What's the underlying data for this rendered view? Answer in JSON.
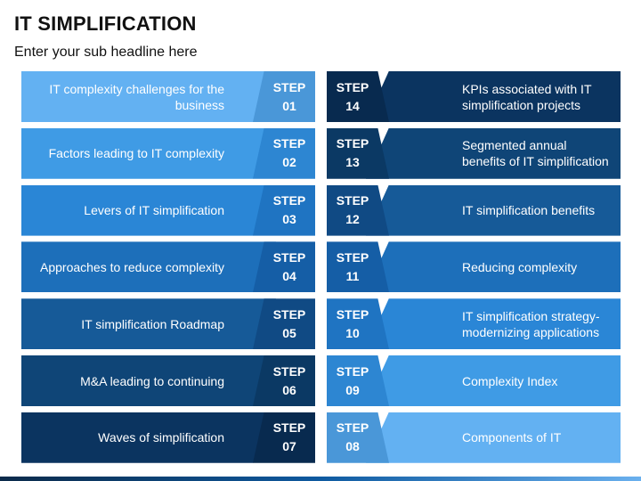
{
  "title": "IT SIMPLIFICATION",
  "subtitle": "Enter your sub headline here",
  "step_word": "STEP",
  "left": [
    {
      "text": "IT complexity challenges for the business",
      "num": "01",
      "band": "#63b1f2",
      "step": "#4a97d8"
    },
    {
      "text": "Factors leading to IT complexity",
      "num": "02",
      "band": "#3f9be5",
      "step": "#2d86d2"
    },
    {
      "text": "Levers of IT simplification",
      "num": "03",
      "band": "#2a86d6",
      "step": "#1f74c2"
    },
    {
      "text": "Approaches to reduce complexity",
      "num": "04",
      "band": "#1d6fba",
      "step": "#155ea6"
    },
    {
      "text": "IT simplification Roadmap",
      "num": "05",
      "band": "#165a98",
      "step": "#104a84"
    },
    {
      "text": "M&A leading to continuing",
      "num": "06",
      "band": "#0f4577",
      "step": "#0b3964"
    },
    {
      "text": "Waves of simplification",
      "num": "07",
      "band": "#0b3460",
      "step": "#082a4f"
    }
  ],
  "right": [
    {
      "text": "KPIs associated with IT simplification projects",
      "num": "14",
      "band": "#0b3460",
      "step": "#082a4f"
    },
    {
      "text": "Segmented annual benefits of IT simplification",
      "num": "13",
      "band": "#0f4577",
      "step": "#0b3964"
    },
    {
      "text": "IT simplification benefits",
      "num": "12",
      "band": "#165a98",
      "step": "#104a84"
    },
    {
      "text": "Reducing complexity",
      "num": "11",
      "band": "#1d6fba",
      "step": "#155ea6"
    },
    {
      "text": "IT simplification strategy-modernizing applications",
      "num": "10",
      "band": "#2a86d6",
      "step": "#1f74c2"
    },
    {
      "text": "Complexity Index",
      "num": "09",
      "band": "#3f9be5",
      "step": "#2d86d2"
    },
    {
      "text": "Components of IT",
      "num": "08",
      "band": "#63b1f2",
      "step": "#4a97d8"
    }
  ]
}
